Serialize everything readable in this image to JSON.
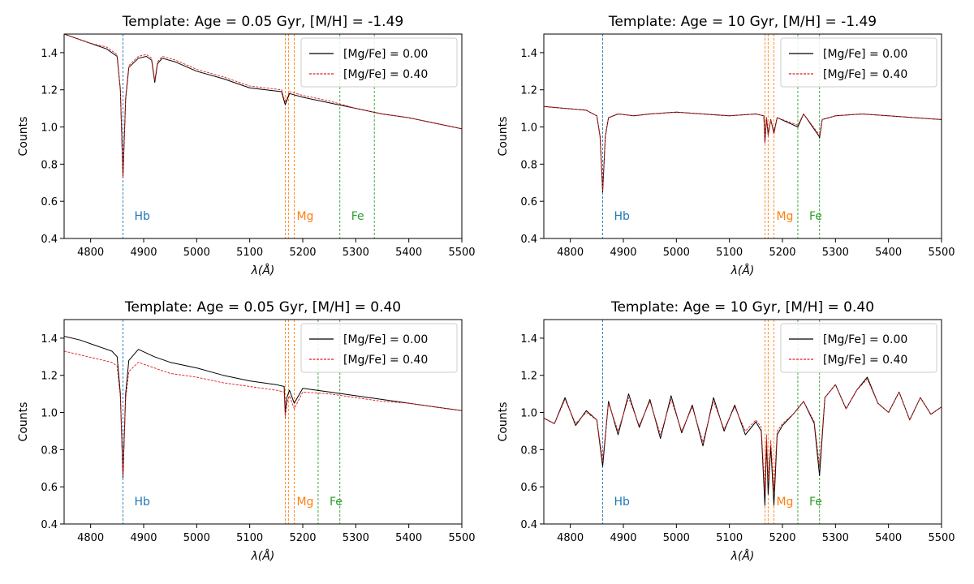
{
  "figure": {
    "background": "#ffffff"
  },
  "chart_data": [
    {
      "type": "line",
      "title": "Template: Age =  0.05 Gyr, [M/H] = -1.49",
      "xlabel": "λ(Å)",
      "ylabel": "Counts",
      "xlim": [
        4750,
        5500
      ],
      "ylim": [
        0.4,
        1.5
      ],
      "xticks": [
        4800,
        4900,
        5000,
        5100,
        5200,
        5300,
        5400,
        5500
      ],
      "yticks": [
        0.4,
        0.6,
        0.8,
        1.0,
        1.2,
        1.4
      ],
      "xtick_labels": [
        "4800",
        "4900",
        "5000",
        "5100",
        "5200",
        "5300",
        "5400",
        "5500"
      ],
      "ytick_labels": [
        "0.4",
        "0.6",
        "0.8",
        "1.0",
        "1.2",
        "1.4"
      ],
      "legend_position": "top-right",
      "lines": [
        {
          "label": "Hb",
          "x": [
            4861
          ],
          "color": "#1f77b4"
        },
        {
          "label": "Mg",
          "x": [
            5167,
            5173,
            5184
          ],
          "color": "#ff7f0e"
        },
        {
          "label": "Fe",
          "x": [
            5270,
            5335
          ],
          "color": "#2ca02c"
        }
      ],
      "series": [
        {
          "name": "[Mg/Fe] = 0.00",
          "color": "#000000",
          "style": "solid",
          "x": [
            4750,
            4800,
            4830,
            4850,
            4856,
            4861,
            4866,
            4872,
            4890,
            4905,
            4915,
            4921,
            4926,
            4935,
            4960,
            5000,
            5050,
            5100,
            5160,
            5167,
            5175,
            5200,
            5250,
            5300,
            5350,
            5400,
            5450,
            5500
          ],
          "y": [
            1.5,
            1.45,
            1.42,
            1.38,
            1.2,
            0.73,
            1.15,
            1.32,
            1.37,
            1.38,
            1.36,
            1.24,
            1.34,
            1.37,
            1.35,
            1.3,
            1.26,
            1.21,
            1.19,
            1.12,
            1.18,
            1.16,
            1.13,
            1.1,
            1.07,
            1.05,
            1.02,
            0.99
          ]
        },
        {
          "name": "[Mg/Fe] = 0.40",
          "color": "#e41a1c",
          "style": "dashed",
          "x": [
            4750,
            4800,
            4830,
            4850,
            4856,
            4861,
            4866,
            4872,
            4890,
            4905,
            4915,
            4921,
            4926,
            4935,
            4960,
            5000,
            5050,
            5100,
            5160,
            5167,
            5175,
            5200,
            5250,
            5300,
            5350,
            5400,
            5450,
            5500
          ],
          "y": [
            1.5,
            1.45,
            1.43,
            1.39,
            1.2,
            0.73,
            1.16,
            1.33,
            1.38,
            1.39,
            1.37,
            1.25,
            1.35,
            1.38,
            1.36,
            1.31,
            1.27,
            1.22,
            1.2,
            1.13,
            1.19,
            1.17,
            1.14,
            1.1,
            1.07,
            1.05,
            1.02,
            0.99
          ]
        }
      ]
    },
    {
      "type": "line",
      "title": "Template: Age =  10 Gyr, [M/H] = -1.49",
      "xlabel": "λ(Å)",
      "ylabel": "Counts",
      "xlim": [
        4750,
        5500
      ],
      "ylim": [
        0.4,
        1.5
      ],
      "xticks": [
        4800,
        4900,
        5000,
        5100,
        5200,
        5300,
        5400,
        5500
      ],
      "yticks": [
        0.4,
        0.6,
        0.8,
        1.0,
        1.2,
        1.4
      ],
      "xtick_labels": [
        "4800",
        "4900",
        "5000",
        "5100",
        "5200",
        "5300",
        "5400",
        "5500"
      ],
      "ytick_labels": [
        "0.4",
        "0.6",
        "0.8",
        "1.0",
        "1.2",
        "1.4"
      ],
      "legend_position": "top-right",
      "lines": [
        {
          "label": "Hb",
          "x": [
            4861
          ],
          "color": "#1f77b4"
        },
        {
          "label": "Mg",
          "x": [
            5167,
            5173,
            5184
          ],
          "color": "#ff7f0e"
        },
        {
          "label": "Fe",
          "x": [
            5229,
            5270
          ],
          "color": "#2ca02c"
        }
      ],
      "series": [
        {
          "name": "[Mg/Fe] = 0.00",
          "color": "#000000",
          "style": "solid",
          "x": [
            4750,
            4790,
            4830,
            4850,
            4856,
            4861,
            4866,
            4872,
            4890,
            4920,
            4950,
            5000,
            5050,
            5100,
            5150,
            5165,
            5167,
            5170,
            5173,
            5178,
            5184,
            5190,
            5229,
            5240,
            5269,
            5270,
            5275,
            5300,
            5350,
            5400,
            5450,
            5500
          ],
          "y": [
            1.11,
            1.1,
            1.09,
            1.06,
            0.95,
            0.65,
            0.95,
            1.05,
            1.07,
            1.06,
            1.07,
            1.08,
            1.07,
            1.06,
            1.07,
            1.06,
            0.92,
            1.05,
            0.96,
            1.04,
            0.97,
            1.05,
            1.0,
            1.07,
            0.95,
            0.94,
            1.04,
            1.06,
            1.07,
            1.06,
            1.05,
            1.04
          ]
        },
        {
          "name": "[Mg/Fe] = 0.40",
          "color": "#e41a1c",
          "style": "dashed",
          "x": [
            4750,
            4790,
            4830,
            4850,
            4856,
            4861,
            4866,
            4872,
            4890,
            4920,
            4950,
            5000,
            5050,
            5100,
            5150,
            5165,
            5167,
            5170,
            5173,
            5178,
            5184,
            5190,
            5229,
            5240,
            5269,
            5270,
            5275,
            5300,
            5350,
            5400,
            5450,
            5500
          ],
          "y": [
            1.11,
            1.1,
            1.09,
            1.06,
            0.95,
            0.66,
            0.95,
            1.05,
            1.07,
            1.06,
            1.07,
            1.08,
            1.07,
            1.06,
            1.07,
            1.06,
            0.91,
            1.05,
            0.95,
            1.04,
            0.96,
            1.05,
            1.01,
            1.07,
            0.96,
            0.95,
            1.04,
            1.06,
            1.07,
            1.06,
            1.05,
            1.04
          ]
        }
      ]
    },
    {
      "type": "line",
      "title": "Template: Age =  0.05 Gyr, [M/H] = 0.40",
      "xlabel": "λ(Å)",
      "ylabel": "Counts",
      "xlim": [
        4750,
        5500
      ],
      "ylim": [
        0.4,
        1.5
      ],
      "xticks": [
        4800,
        4900,
        5000,
        5100,
        5200,
        5300,
        5400,
        5500
      ],
      "yticks": [
        0.4,
        0.6,
        0.8,
        1.0,
        1.2,
        1.4
      ],
      "xtick_labels": [
        "4800",
        "4900",
        "5000",
        "5100",
        "5200",
        "5300",
        "5400",
        "5500"
      ],
      "ytick_labels": [
        "0.4",
        "0.6",
        "0.8",
        "1.0",
        "1.2",
        "1.4"
      ],
      "legend_position": "top-right",
      "lines": [
        {
          "label": "Hb",
          "x": [
            4861
          ],
          "color": "#1f77b4"
        },
        {
          "label": "Mg",
          "x": [
            5167,
            5173,
            5184
          ],
          "color": "#ff7f0e"
        },
        {
          "label": "Fe",
          "x": [
            5229,
            5270
          ],
          "color": "#2ca02c"
        }
      ],
      "series": [
        {
          "name": "[Mg/Fe] = 0.00",
          "color": "#000000",
          "style": "solid",
          "x": [
            4750,
            4780,
            4810,
            4840,
            4850,
            4856,
            4861,
            4866,
            4872,
            4890,
            4920,
            4950,
            5000,
            5050,
            5100,
            5150,
            5165,
            5167,
            5170,
            5175,
            5184,
            5200,
            5250,
            5300,
            5350,
            5400,
            5450,
            5500
          ],
          "y": [
            1.41,
            1.39,
            1.36,
            1.33,
            1.3,
            1.1,
            0.65,
            1.1,
            1.28,
            1.34,
            1.3,
            1.27,
            1.24,
            1.2,
            1.17,
            1.15,
            1.14,
            1.0,
            1.08,
            1.12,
            1.05,
            1.13,
            1.11,
            1.09,
            1.07,
            1.05,
            1.03,
            1.01
          ]
        },
        {
          "name": "[Mg/Fe] = 0.40",
          "color": "#e41a1c",
          "style": "dashed",
          "x": [
            4750,
            4780,
            4810,
            4840,
            4850,
            4856,
            4861,
            4866,
            4872,
            4890,
            4920,
            4950,
            5000,
            5050,
            5100,
            5150,
            5165,
            5167,
            5170,
            5175,
            5184,
            5200,
            5250,
            5300,
            5350,
            5400,
            5450,
            5500
          ],
          "y": [
            1.33,
            1.31,
            1.29,
            1.27,
            1.25,
            1.08,
            0.66,
            1.07,
            1.22,
            1.27,
            1.24,
            1.21,
            1.19,
            1.16,
            1.14,
            1.12,
            1.11,
            0.97,
            1.05,
            1.09,
            1.02,
            1.11,
            1.1,
            1.08,
            1.06,
            1.05,
            1.03,
            1.01
          ]
        }
      ]
    },
    {
      "type": "line",
      "title": "Template: Age =  10 Gyr, [M/H] = 0.40",
      "xlabel": "λ(Å)",
      "ylabel": "Counts",
      "xlim": [
        4750,
        5500
      ],
      "ylim": [
        0.4,
        1.5
      ],
      "xticks": [
        4800,
        4900,
        5000,
        5100,
        5200,
        5300,
        5400,
        5500
      ],
      "yticks": [
        0.4,
        0.6,
        0.8,
        1.0,
        1.2,
        1.4
      ],
      "xtick_labels": [
        "4800",
        "4900",
        "5000",
        "5100",
        "5200",
        "5300",
        "5400",
        "5500"
      ],
      "ytick_labels": [
        "0.4",
        "0.6",
        "0.8",
        "1.0",
        "1.2",
        "1.4"
      ],
      "legend_position": "top-right",
      "lines": [
        {
          "label": "Hb",
          "x": [
            4861
          ],
          "color": "#1f77b4"
        },
        {
          "label": "Mg",
          "x": [
            5167,
            5173,
            5184
          ],
          "color": "#ff7f0e"
        },
        {
          "label": "Fe",
          "x": [
            5229,
            5270
          ],
          "color": "#2ca02c"
        }
      ],
      "series": [
        {
          "name": "[Mg/Fe] = 0.00",
          "color": "#000000",
          "style": "solid",
          "x": [
            4750,
            4770,
            4790,
            4810,
            4830,
            4850,
            4861,
            4872,
            4890,
            4910,
            4930,
            4950,
            4970,
            4990,
            5010,
            5030,
            5050,
            5070,
            5090,
            5110,
            5130,
            5150,
            5160,
            5167,
            5170,
            5173,
            5178,
            5184,
            5190,
            5200,
            5220,
            5240,
            5260,
            5270,
            5280,
            5300,
            5320,
            5340,
            5360,
            5380,
            5400,
            5420,
            5440,
            5460,
            5480,
            5500
          ],
          "y": [
            0.97,
            0.94,
            1.08,
            0.93,
            1.01,
            0.96,
            0.71,
            1.06,
            0.88,
            1.1,
            0.92,
            1.07,
            0.86,
            1.09,
            0.89,
            1.04,
            0.82,
            1.08,
            0.9,
            1.04,
            0.88,
            0.95,
            0.9,
            0.5,
            0.85,
            0.56,
            0.82,
            0.5,
            0.88,
            0.93,
            0.99,
            1.06,
            0.94,
            0.66,
            1.08,
            1.15,
            1.02,
            1.12,
            1.19,
            1.05,
            1.0,
            1.11,
            0.96,
            1.08,
            0.99,
            1.03
          ]
        },
        {
          "name": "[Mg/Fe] = 0.40",
          "color": "#e41a1c",
          "style": "dashed",
          "x": [
            4750,
            4770,
            4790,
            4810,
            4830,
            4850,
            4861,
            4872,
            4890,
            4910,
            4930,
            4950,
            4970,
            4990,
            5010,
            5030,
            5050,
            5070,
            5090,
            5110,
            5130,
            5150,
            5160,
            5167,
            5170,
            5173,
            5178,
            5184,
            5190,
            5200,
            5220,
            5240,
            5260,
            5270,
            5280,
            5300,
            5320,
            5340,
            5360,
            5380,
            5400,
            5420,
            5440,
            5460,
            5480,
            5500
          ],
          "y": [
            0.97,
            0.94,
            1.07,
            0.94,
            1.0,
            0.96,
            0.74,
            1.05,
            0.9,
            1.08,
            0.93,
            1.06,
            0.88,
            1.07,
            0.9,
            1.03,
            0.84,
            1.06,
            0.91,
            1.03,
            0.9,
            0.96,
            0.92,
            0.57,
            0.88,
            0.63,
            0.85,
            0.58,
            0.9,
            0.94,
            0.99,
            1.06,
            0.95,
            0.71,
            1.08,
            1.15,
            1.02,
            1.12,
            1.18,
            1.05,
            1.0,
            1.11,
            0.96,
            1.08,
            0.99,
            1.03
          ]
        }
      ]
    }
  ]
}
